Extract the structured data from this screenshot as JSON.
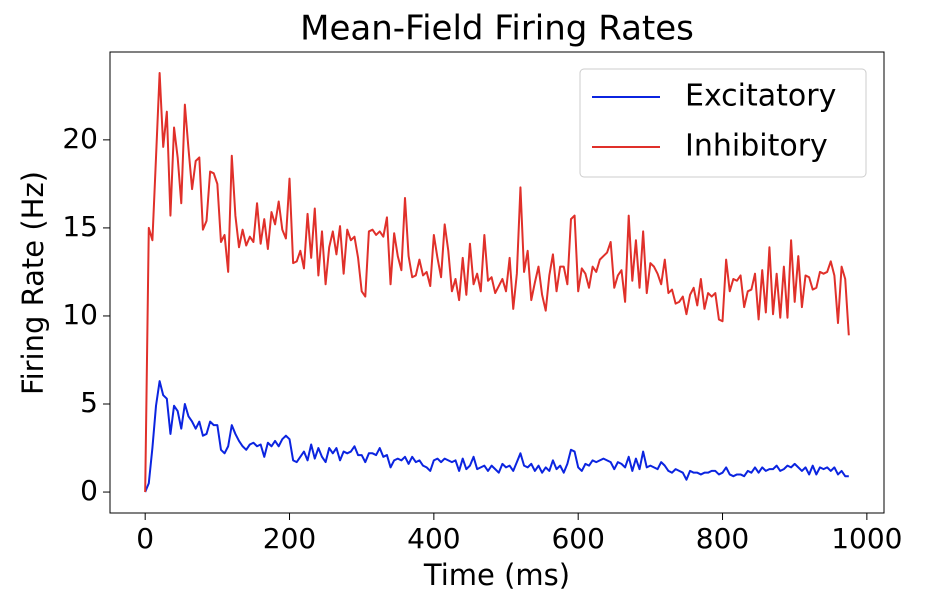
{
  "chart_data": {
    "type": "line",
    "title": "Mean-Field Firing Rates",
    "xlabel": "Time (ms)",
    "ylabel": "Firing Rate (Hz)",
    "x": [
      0,
      5,
      10,
      15,
      20,
      25,
      30,
      35,
      40,
      45,
      50,
      55,
      60,
      65,
      70,
      75,
      80,
      85,
      90,
      95,
      100,
      105,
      110,
      115,
      120,
      125,
      130,
      135,
      140,
      145,
      150,
      155,
      160,
      165,
      170,
      175,
      180,
      185,
      190,
      195,
      200,
      205,
      210,
      215,
      220,
      225,
      230,
      235,
      240,
      245,
      250,
      255,
      260,
      265,
      270,
      275,
      280,
      285,
      290,
      295,
      300,
      305,
      310,
      315,
      320,
      325,
      330,
      335,
      340,
      345,
      350,
      355,
      360,
      365,
      370,
      375,
      380,
      385,
      390,
      395,
      400,
      405,
      410,
      415,
      420,
      425,
      430,
      435,
      440,
      445,
      450,
      455,
      460,
      465,
      470,
      475,
      480,
      485,
      490,
      495,
      500,
      505,
      510,
      515,
      520,
      525,
      530,
      535,
      540,
      545,
      550,
      555,
      560,
      565,
      570,
      575,
      580,
      585,
      590,
      595,
      600,
      605,
      610,
      615,
      620,
      625,
      630,
      635,
      640,
      645,
      650,
      655,
      660,
      665,
      670,
      675,
      680,
      685,
      690,
      695,
      700,
      705,
      710,
      715,
      720,
      725,
      730,
      735,
      740,
      745,
      750,
      755,
      760,
      765,
      770,
      775,
      780,
      785,
      790,
      795,
      800,
      805,
      810,
      815,
      820,
      825,
      830,
      835,
      840,
      845,
      850,
      855,
      860,
      865,
      870,
      875,
      880,
      885,
      890,
      895,
      900,
      905,
      910,
      915,
      920,
      925,
      930,
      935,
      940,
      945,
      950,
      955,
      960,
      965,
      970,
      975
    ],
    "series": [
      {
        "name": "Excitatory",
        "color": "#0b24e0",
        "values": [
          0,
          0.5,
          2.5,
          4.9,
          6.3,
          5.5,
          5.3,
          3.3,
          4.9,
          4.6,
          3.6,
          5,
          4.3,
          4,
          3.6,
          4,
          3.2,
          3.3,
          4,
          3.8,
          3.8,
          2.4,
          2.2,
          2.6,
          3.8,
          3.3,
          2.9,
          2.6,
          2.4,
          2.7,
          2.8,
          2.6,
          2.7,
          2,
          2.8,
          2.6,
          2.9,
          2.6,
          3,
          3.2,
          3,
          1.8,
          1.7,
          2,
          2.3,
          1.8,
          2.7,
          1.9,
          2.5,
          2,
          1.7,
          2.5,
          2.2,
          2.5,
          1.8,
          2.3,
          2.2,
          2.3,
          2.6,
          2.1,
          2.1,
          1.7,
          2.2,
          2.2,
          2.1,
          2.5,
          2,
          2.1,
          1.4,
          1.8,
          1.9,
          1.8,
          2,
          1.6,
          2,
          1.7,
          1.8,
          1.5,
          1.4,
          1.2,
          1.8,
          1.9,
          1.7,
          1.9,
          1.8,
          1.7,
          1.8,
          1.2,
          1.9,
          1.3,
          1.5,
          2,
          1.3,
          1.4,
          1.5,
          1.2,
          1.5,
          1.3,
          1.1,
          1.6,
          1.4,
          1.5,
          1.2,
          1.7,
          2.2,
          1.5,
          1.4,
          1.6,
          1.2,
          1.5,
          1.1,
          1.4,
          1.2,
          1.8,
          1.3,
          1.5,
          1.1,
          1.6,
          2.4,
          2.3,
          1.4,
          1.2,
          1.6,
          1.5,
          1.8,
          1.7,
          1.8,
          1.9,
          1.8,
          1.7,
          1.3,
          1.7,
          1.6,
          1.4,
          2,
          1.2,
          1.9,
          1.3,
          2.3,
          1.4,
          1.5,
          1.4,
          1.3,
          1.7,
          1.5,
          1.2,
          1.1,
          1.3,
          1.2,
          1.1,
          0.7,
          1.2,
          1.1,
          1.1,
          1,
          1.1,
          1.1,
          1.2,
          1.2,
          1,
          1.1,
          1.4,
          1,
          0.9,
          1,
          1,
          0.9,
          1.2,
          1.1,
          1.4,
          1.1,
          1.4,
          1.2,
          1.3,
          1.3,
          1.5,
          1.2,
          1.3,
          1.5,
          1.4,
          1.6,
          1.4,
          1.2,
          1.4,
          1,
          1.5,
          1,
          1.4,
          1.3,
          1.4,
          1.2,
          1.4,
          1,
          1.2,
          0.9,
          0.9
        ]
      },
      {
        "name": "Inhibitory",
        "color": "#e0302a",
        "values": [
          0,
          15,
          14.3,
          19,
          23.8,
          19.6,
          21.6,
          15.7,
          20.7,
          19,
          16.4,
          22,
          19.5,
          17.2,
          18.8,
          19,
          14.9,
          15.4,
          18.2,
          18.1,
          17.5,
          14.2,
          14.6,
          12.5,
          19.1,
          15.7,
          13.9,
          14.9,
          14,
          14.5,
          14.2,
          16.4,
          14.1,
          15.5,
          13.8,
          15.9,
          15.2,
          16.5,
          14.9,
          14.4,
          17.8,
          13,
          13.1,
          13.7,
          12.7,
          15.8,
          13.3,
          16.1,
          12.3,
          14.8,
          11.8,
          13.9,
          14.8,
          13.5,
          15.1,
          12.4,
          14.9,
          14.3,
          14.5,
          13.3,
          11.4,
          11.1,
          14.8,
          14.9,
          14.6,
          14.8,
          14.5,
          15.6,
          11.8,
          14.7,
          13.4,
          12.6,
          16.7,
          13.4,
          12.2,
          12.3,
          13.2,
          12.3,
          12.5,
          11.7,
          14.6,
          13.3,
          12.2,
          15.2,
          13.7,
          11.4,
          12.1,
          10.9,
          13.3,
          11.2,
          14.1,
          11.8,
          12.4,
          11.4,
          14.6,
          12,
          12.2,
          11.3,
          11.7,
          12.1,
          11.4,
          13.3,
          10.4,
          12.4,
          17.3,
          12.5,
          13.7,
          10.9,
          11.9,
          12.8,
          11.2,
          10.3,
          12.3,
          13.5,
          11.4,
          12.8,
          12.8,
          11.8,
          15.5,
          15.7,
          11.4,
          12.7,
          12.4,
          11.6,
          12.8,
          12.5,
          13.2,
          13.4,
          13.6,
          14.2,
          11.6,
          12.3,
          12.6,
          10.8,
          15.7,
          12,
          14.3,
          11.6,
          14.8,
          11.3,
          13,
          12.8,
          12.4,
          11.8,
          13.2,
          11.3,
          11.5,
          10.7,
          10.8,
          11.1,
          10.1,
          11.2,
          11.6,
          10.6,
          12.1,
          10.4,
          11.3,
          11.1,
          11.3,
          9.8,
          9.7,
          13.2,
          11.4,
          12.1,
          12,
          12.3,
          10.5,
          11.4,
          11.5,
          12.4,
          9.8,
          12.6,
          10.2,
          13.9,
          10.1,
          12.4,
          9.9,
          12.8,
          9.9,
          14.3,
          10.8,
          13.4,
          10.5,
          12.3,
          12.2,
          11.5,
          11.6,
          12.5,
          12.4,
          12.5,
          13.1,
          12.3,
          9.6,
          12.8,
          12.1,
          8.9
        ]
      }
    ],
    "xlim": [
      -48.75,
      1023.75
    ],
    "xticks": [
      0,
      200,
      400,
      600,
      800,
      1000
    ],
    "ylim": [
      -1.19,
      24.99
    ],
    "yticks": [
      0,
      5,
      10,
      15,
      20
    ],
    "grid": false,
    "legend": "upper right"
  }
}
